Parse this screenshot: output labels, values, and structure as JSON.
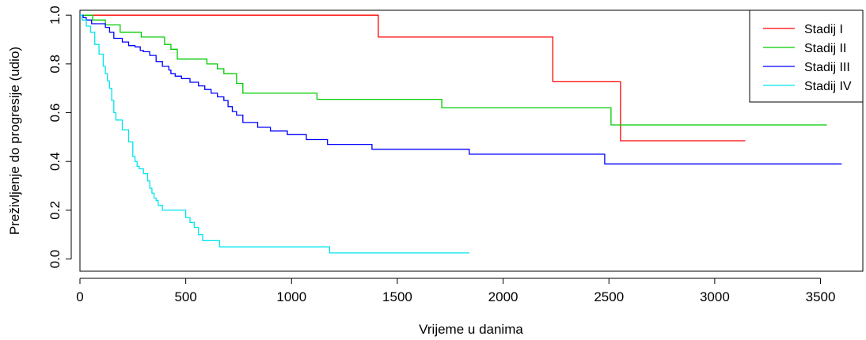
{
  "chart_data": {
    "type": "line",
    "step": true,
    "title": "",
    "xlabel": "Vrijeme u danima",
    "ylabel": "Preživljenje do progresije (udio)",
    "xlim": [
      0,
      3700
    ],
    "ylim": [
      -0.05,
      1.02
    ],
    "xticks": [
      0,
      500,
      1000,
      1500,
      2000,
      2500,
      3000,
      3500
    ],
    "yticks": [
      0.0,
      0.2,
      0.4,
      0.6,
      0.8,
      1.0
    ],
    "xtick_labels": [
      "0",
      "500",
      "1000",
      "1500",
      "2000",
      "2500",
      "3000",
      "3500"
    ],
    "ytick_labels": [
      "0.0",
      "0.2",
      "0.4",
      "0.6",
      "0.8",
      "1.0"
    ],
    "legend_position": "top-right",
    "grid": false,
    "series": [
      {
        "name": "Stadij I",
        "color": "#ff0000",
        "x": [
          0,
          1410,
          2235,
          2555,
          3145
        ],
        "y": [
          1.0,
          0.91,
          0.727,
          0.485,
          0.485
        ]
      },
      {
        "name": "Stadij II",
        "color": "#00cc00",
        "x": [
          0,
          60,
          120,
          190,
          290,
          400,
          430,
          460,
          570,
          600,
          650,
          680,
          740,
          770,
          1120,
          1710,
          2510,
          3530
        ],
        "y": [
          1.0,
          0.98,
          0.96,
          0.93,
          0.91,
          0.88,
          0.86,
          0.82,
          0.82,
          0.8,
          0.78,
          0.76,
          0.72,
          0.68,
          0.655,
          0.62,
          0.55,
          0.55
        ],
        "end_x": 3530
      },
      {
        "name": "Stadij III",
        "color": "#0000ff",
        "x": [
          0,
          15,
          30,
          55,
          120,
          140,
          160,
          180,
          200,
          230,
          260,
          285,
          300,
          330,
          360,
          390,
          420,
          430,
          450,
          480,
          520,
          560,
          590,
          620,
          650,
          680,
          700,
          720,
          740,
          770,
          800,
          840,
          900,
          980,
          1070,
          1170,
          1380,
          1840,
          2480,
          3600
        ],
        "y": [
          1.0,
          0.99,
          0.98,
          0.965,
          0.95,
          0.93,
          0.905,
          0.905,
          0.89,
          0.875,
          0.87,
          0.855,
          0.85,
          0.835,
          0.81,
          0.79,
          0.775,
          0.76,
          0.75,
          0.74,
          0.725,
          0.71,
          0.695,
          0.68,
          0.665,
          0.65,
          0.625,
          0.605,
          0.59,
          0.56,
          0.56,
          0.54,
          0.525,
          0.51,
          0.49,
          0.47,
          0.45,
          0.43,
          0.39,
          0.39
        ]
      },
      {
        "name": "Stadij IV",
        "color": "#00e5ee",
        "x": [
          0,
          10,
          30,
          50,
          70,
          90,
          110,
          120,
          130,
          140,
          150,
          160,
          170,
          180,
          200,
          230,
          250,
          260,
          270,
          280,
          300,
          320,
          330,
          340,
          350,
          360,
          370,
          390,
          420,
          500,
          520,
          540,
          560,
          580,
          600,
          660,
          1180,
          1840
        ],
        "y": [
          1.0,
          0.98,
          0.955,
          0.93,
          0.88,
          0.84,
          0.79,
          0.76,
          0.73,
          0.7,
          0.65,
          0.6,
          0.57,
          0.57,
          0.53,
          0.48,
          0.42,
          0.4,
          0.38,
          0.37,
          0.35,
          0.32,
          0.29,
          0.27,
          0.25,
          0.24,
          0.22,
          0.2,
          0.2,
          0.17,
          0.15,
          0.13,
          0.1,
          0.075,
          0.075,
          0.05,
          0.025,
          0.025
        ]
      }
    ]
  }
}
